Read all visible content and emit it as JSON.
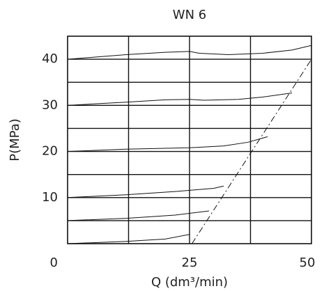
{
  "chart_data": {
    "type": "line",
    "title": "WN 6",
    "x_label": "Q (dm³/min)",
    "y_label": "P(MPa)",
    "xlim": [
      0,
      50
    ],
    "xticks": [
      0,
      25,
      50
    ],
    "xgrid": [
      12.5,
      25,
      37.5
    ],
    "ylim": [
      0,
      45
    ],
    "yticks": [
      10,
      20,
      30,
      40
    ],
    "ygrid": [
      5,
      10,
      15,
      20,
      25,
      30,
      35,
      40
    ],
    "grid": true,
    "series": [
      {
        "color": "#111111",
        "style": "solid",
        "x": [
          0,
          12,
          20,
          25,
          27,
          33,
          40,
          46,
          50
        ],
        "values": [
          40,
          41,
          41.5,
          41.7,
          41.3,
          41,
          41.3,
          42,
          43
        ]
      },
      {
        "color": "#111111",
        "style": "solid",
        "x": [
          0,
          12,
          20,
          25,
          28,
          35,
          40,
          46
        ],
        "values": [
          30,
          30.7,
          31.2,
          31.3,
          31.1,
          31.3,
          31.8,
          32.7
        ]
      },
      {
        "color": "#111111",
        "style": "solid",
        "x": [
          0,
          12,
          25,
          32,
          37,
          41
        ],
        "values": [
          20,
          20.5,
          20.8,
          21.2,
          22,
          23.2
        ]
      },
      {
        "color": "#111111",
        "style": "solid",
        "x": [
          0,
          12,
          22,
          30,
          32
        ],
        "values": [
          10,
          10.6,
          11.3,
          12,
          12.5
        ]
      },
      {
        "color": "#111111",
        "style": "solid",
        "x": [
          0,
          12,
          22,
          29
        ],
        "values": [
          5,
          5.5,
          6.2,
          7.1
        ]
      },
      {
        "color": "#111111",
        "style": "solid",
        "x": [
          0,
          12,
          20,
          25
        ],
        "values": [
          0,
          0.5,
          1,
          2
        ]
      },
      {
        "color": "#111111",
        "style": "dashdot",
        "x": [
          25.5,
          50
        ],
        "values": [
          0,
          40
        ]
      }
    ]
  }
}
